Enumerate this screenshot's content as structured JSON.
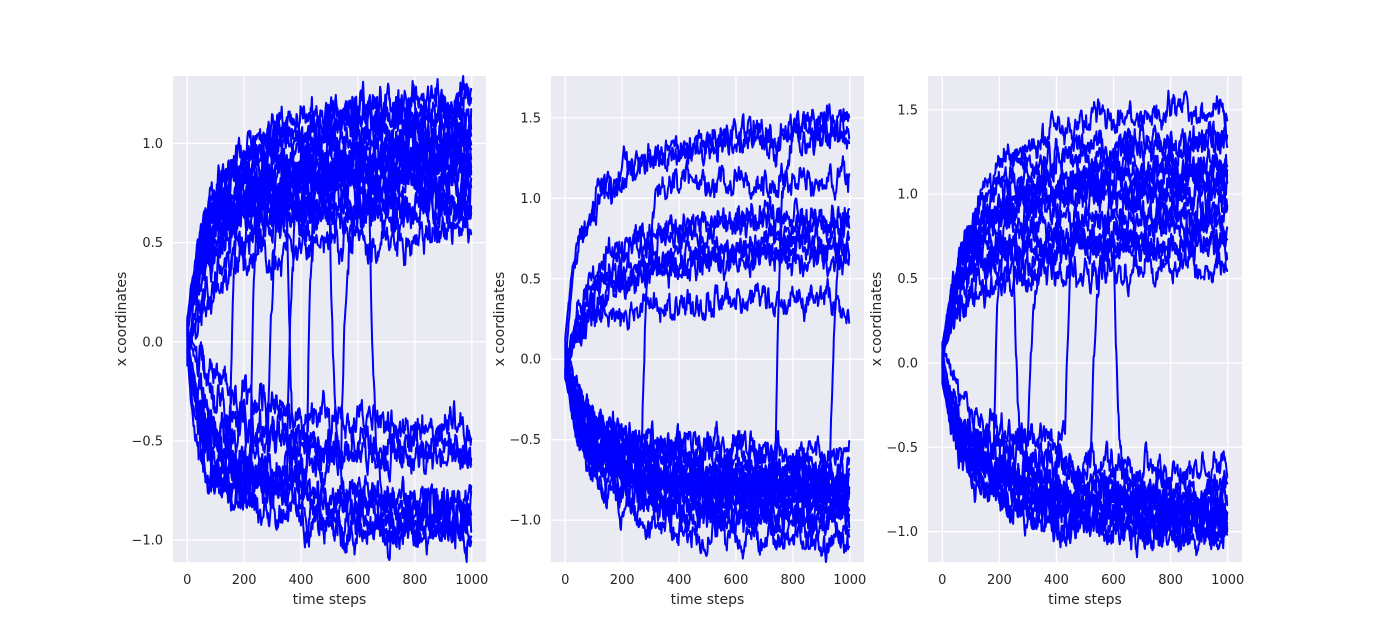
{
  "chart_data": [
    {
      "type": "line",
      "xlabel": "time steps",
      "ylabel": "x coordinates",
      "xlim": [
        -50,
        1050
      ],
      "ylim": [
        -1.11,
        1.34
      ],
      "x_ticks": [
        0,
        200,
        400,
        600,
        800,
        1000
      ],
      "y_ticks": [
        -1.0,
        -0.5,
        0.0,
        0.5,
        1.0
      ],
      "y_tick_labels": [
        "−1.0",
        "−0.5",
        "0.0",
        "0.5",
        "1.0"
      ],
      "grid": true,
      "series_color": "#0000ff",
      "n_points": 1000,
      "series": [
        {
          "final": 1.15,
          "switch": null
        },
        {
          "final": 1.05,
          "switch": null
        },
        {
          "final": 0.95,
          "switch": null
        },
        {
          "final": 0.85,
          "switch": null
        },
        {
          "final": 0.78,
          "switch": null
        },
        {
          "final": 0.7,
          "switch": null
        },
        {
          "final": 0.9,
          "switch": null
        },
        {
          "final": 1.1,
          "switch": null
        },
        {
          "final": 0.8,
          "switch": null
        },
        {
          "final": 0.65,
          "switch": null
        },
        {
          "final": 1.0,
          "switch": null
        },
        {
          "final": 0.75,
          "switch": null
        },
        {
          "final": 0.9,
          "switch": 150
        },
        {
          "final": 1.05,
          "switch": 220
        },
        {
          "final": 0.8,
          "switch": 280
        },
        {
          "final": 0.95,
          "switch": 350
        },
        {
          "final": 1.15,
          "switch": 420
        },
        {
          "final": 0.7,
          "switch": 540
        },
        {
          "final": -0.95,
          "switch": null
        },
        {
          "final": -0.9,
          "switch": null
        },
        {
          "final": -0.85,
          "switch": null
        },
        {
          "final": -0.6,
          "switch": null
        },
        {
          "final": -0.5,
          "switch": null
        },
        {
          "final": -0.65,
          "switch": null
        },
        {
          "final": -0.95,
          "switch": 350
        },
        {
          "final": -0.85,
          "switch": 500
        },
        {
          "final": -0.9,
          "switch": 640
        }
      ]
    },
    {
      "type": "line",
      "xlabel": "time steps",
      "ylabel": "x coordinates",
      "xlim": [
        -50,
        1050
      ],
      "ylim": [
        -1.26,
        1.76
      ],
      "x_ticks": [
        0,
        200,
        400,
        600,
        800,
        1000
      ],
      "y_ticks": [
        -1.0,
        -0.5,
        0.0,
        0.5,
        1.0,
        1.5
      ],
      "y_tick_labels": [
        "−1.0",
        "−0.5",
        "0.0",
        "0.5",
        "1.0",
        "1.5"
      ],
      "grid": true,
      "series_color": "#0000ff",
      "n_points": 1000,
      "series": [
        {
          "final": 1.27,
          "switch": null
        },
        {
          "final": 1.55,
          "switch": null
        },
        {
          "final": 0.85,
          "switch": null
        },
        {
          "final": 1.0,
          "switch": null
        },
        {
          "final": 0.7,
          "switch": null
        },
        {
          "final": 0.9,
          "switch": null
        },
        {
          "final": 0.75,
          "switch": null
        },
        {
          "final": 0.4,
          "switch": null
        },
        {
          "final": 1.5,
          "switch": 740
        },
        {
          "final": 1.1,
          "switch": 270
        },
        {
          "final": 0.95,
          "switch": 930
        },
        {
          "final": -0.8,
          "switch": null
        },
        {
          "final": -0.9,
          "switch": null
        },
        {
          "final": -1.05,
          "switch": null
        },
        {
          "final": -0.95,
          "switch": null
        },
        {
          "final": -0.75,
          "switch": null
        },
        {
          "final": -0.85,
          "switch": null
        },
        {
          "final": -1.0,
          "switch": null
        },
        {
          "final": -0.7,
          "switch": null
        },
        {
          "final": -0.9,
          "switch": null
        },
        {
          "final": -0.65,
          "switch": null
        },
        {
          "final": -0.88,
          "switch": null
        },
        {
          "final": -1.08,
          "switch": null
        },
        {
          "final": -0.78,
          "switch": null
        },
        {
          "final": -0.95,
          "switch": null
        },
        {
          "final": -0.82,
          "switch": null
        }
      ]
    },
    {
      "type": "line",
      "xlabel": "time steps",
      "ylabel": "x coordinates",
      "xlim": [
        -50,
        1050
      ],
      "ylim": [
        -1.18,
        1.7
      ],
      "x_ticks": [
        0,
        200,
        400,
        600,
        800,
        1000
      ],
      "y_ticks": [
        -1.0,
        -0.5,
        0.0,
        0.5,
        1.0,
        1.5
      ],
      "y_tick_labels": [
        "−1.0",
        "−0.5",
        "0.0",
        "0.5",
        "1.0",
        "1.5"
      ],
      "grid": true,
      "series_color": "#0000ff",
      "n_points": 1000,
      "series": [
        {
          "final": 1.55,
          "switch": null
        },
        {
          "final": 1.35,
          "switch": null
        },
        {
          "final": 1.2,
          "switch": null
        },
        {
          "final": 1.1,
          "switch": null
        },
        {
          "final": 1.0,
          "switch": null
        },
        {
          "final": 0.9,
          "switch": null
        },
        {
          "final": 0.75,
          "switch": null
        },
        {
          "final": 0.65,
          "switch": null
        },
        {
          "final": 0.5,
          "switch": null
        },
        {
          "final": 1.25,
          "switch": null
        },
        {
          "final": 1.05,
          "switch": null
        },
        {
          "final": 0.7,
          "switch": 300
        },
        {
          "final": 1.15,
          "switch": 430
        },
        {
          "final": 0.85,
          "switch": 520
        },
        {
          "final": 1.0,
          "switch": 180
        },
        {
          "final": -0.7,
          "switch": null
        },
        {
          "final": -0.85,
          "switch": null
        },
        {
          "final": -0.95,
          "switch": null
        },
        {
          "final": -0.9,
          "switch": null
        },
        {
          "final": -0.8,
          "switch": null
        },
        {
          "final": -1.0,
          "switch": null
        },
        {
          "final": -0.75,
          "switch": null
        },
        {
          "final": -0.88,
          "switch": null
        },
        {
          "final": -0.65,
          "switch": null
        },
        {
          "final": -0.92,
          "switch": null
        },
        {
          "final": -0.85,
          "switch": 250
        },
        {
          "final": -0.95,
          "switch": 600
        }
      ]
    }
  ]
}
